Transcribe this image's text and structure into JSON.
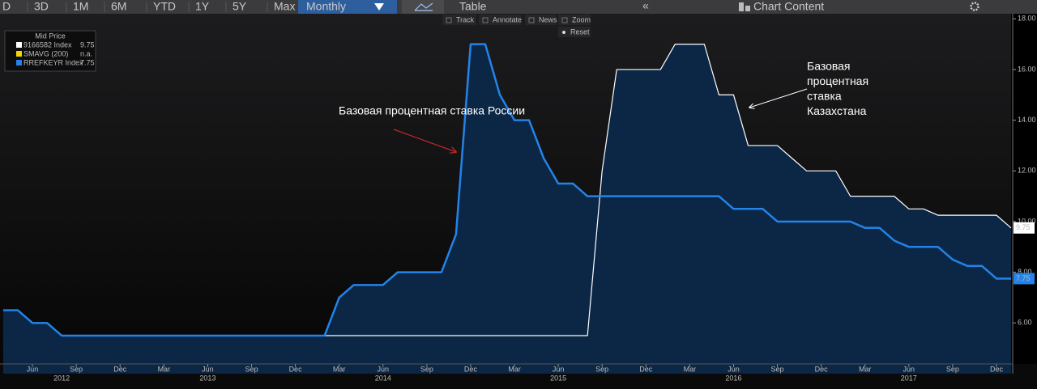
{
  "toolbar": {
    "ranges": [
      "D",
      "3D",
      "1M",
      "6M",
      "YTD",
      "1Y",
      "5Y",
      "Max"
    ],
    "period": "Monthly",
    "table": "Table",
    "panel": "Chart Content"
  },
  "chart_tools": [
    "Track",
    "Annotate",
    "News",
    "Zoom"
  ],
  "reset": "Reset",
  "chart_data": {
    "type": "line",
    "area": true,
    "area_color": "#0b2745",
    "legend_title": "Mid Price",
    "legend_extra": {
      "name": "SMAVG (200)",
      "color": "#f2d600",
      "value_label": "n.a."
    },
    "annotations": [
      {
        "text": "Базовая процентная ставка России",
        "color": "#c0262b"
      },
      {
        "lines": [
          "Базовая",
          "процентная",
          "ставка",
          "Казахстана"
        ],
        "color": "#ffffff"
      }
    ],
    "x": [
      "2012-04",
      "2012-05",
      "2012-06",
      "2012-07",
      "2012-08",
      "2012-09",
      "2012-10",
      "2012-11",
      "2012-12",
      "2013-01",
      "2013-02",
      "2013-03",
      "2013-04",
      "2013-05",
      "2013-06",
      "2013-07",
      "2013-08",
      "2013-09",
      "2013-10",
      "2013-11",
      "2013-12",
      "2014-01",
      "2014-02",
      "2014-03",
      "2014-04",
      "2014-05",
      "2014-06",
      "2014-07",
      "2014-08",
      "2014-09",
      "2014-10",
      "2014-11",
      "2014-12",
      "2015-01",
      "2015-02",
      "2015-03",
      "2015-04",
      "2015-05",
      "2015-06",
      "2015-07",
      "2015-08",
      "2015-09",
      "2015-10",
      "2015-11",
      "2015-12",
      "2016-01",
      "2016-02",
      "2016-03",
      "2016-04",
      "2016-05",
      "2016-06",
      "2016-07",
      "2016-08",
      "2016-09",
      "2016-10",
      "2016-11",
      "2016-12",
      "2017-01",
      "2017-02",
      "2017-03",
      "2017-04",
      "2017-05",
      "2017-06",
      "2017-07",
      "2017-08",
      "2017-09",
      "2017-10",
      "2017-11",
      "2017-12",
      "2018-01"
    ],
    "series": [
      {
        "name": "9166582 Index",
        "color": "#ffffff",
        "width": 1.2,
        "values": [
          null,
          null,
          null,
          null,
          null,
          null,
          null,
          null,
          null,
          null,
          null,
          null,
          null,
          null,
          null,
          null,
          null,
          5.5,
          5.5,
          5.5,
          5.5,
          5.5,
          5.5,
          5.5,
          5.5,
          5.5,
          5.5,
          5.5,
          5.5,
          5.5,
          5.5,
          5.5,
          5.5,
          5.5,
          5.5,
          5.5,
          5.5,
          5.5,
          5.5,
          5.5,
          5.5,
          12,
          16,
          16,
          16,
          16,
          17,
          17,
          17,
          15,
          15,
          13,
          13,
          13,
          12.5,
          12,
          12,
          12,
          11,
          11,
          11,
          11,
          10.5,
          10.5,
          10.25,
          10.25,
          10.25,
          10.25,
          10.25,
          9.75
        ]
      },
      {
        "name": "RREFKEYR Index",
        "color": "#2383e8",
        "width": 2.5,
        "values": [
          6.5,
          6.5,
          6,
          6,
          5.5,
          5.5,
          5.5,
          5.5,
          5.5,
          5.5,
          5.5,
          5.5,
          5.5,
          5.5,
          5.5,
          5.5,
          5.5,
          5.5,
          5.5,
          5.5,
          5.5,
          5.5,
          5.5,
          7,
          7.5,
          7.5,
          7.5,
          8,
          8,
          8,
          8,
          9.5,
          17,
          17,
          15,
          14,
          14,
          12.5,
          11.5,
          11.5,
          11,
          11,
          11,
          11,
          11,
          11,
          11,
          11,
          11,
          11,
          10.5,
          10.5,
          10.5,
          10,
          10,
          10,
          10,
          10,
          10,
          9.75,
          9.75,
          9.25,
          9,
          9,
          9,
          8.5,
          8.25,
          8.25,
          7.75,
          7.75
        ]
      }
    ],
    "xlim": [
      "2012-04",
      "2018-01"
    ],
    "xticks": [
      {
        "value": "2012-06",
        "label": "Jun"
      },
      {
        "value": "2012-09",
        "label": "Sep"
      },
      {
        "value": "2012-12",
        "label": "Dec"
      },
      {
        "value": "2013-03",
        "label": "Mar"
      },
      {
        "value": "2013-06",
        "label": "Jun"
      },
      {
        "value": "2013-09",
        "label": "Sep"
      },
      {
        "value": "2013-12",
        "label": "Dec"
      },
      {
        "value": "2014-03",
        "label": "Mar"
      },
      {
        "value": "2014-06",
        "label": "Jun"
      },
      {
        "value": "2014-09",
        "label": "Sep"
      },
      {
        "value": "2014-12",
        "label": "Dec"
      },
      {
        "value": "2015-03",
        "label": "Mar"
      },
      {
        "value": "2015-06",
        "label": "Jun"
      },
      {
        "value": "2015-09",
        "label": "Sep"
      },
      {
        "value": "2015-12",
        "label": "Dec"
      },
      {
        "value": "2016-03",
        "label": "Mar"
      },
      {
        "value": "2016-06",
        "label": "Jun"
      },
      {
        "value": "2016-09",
        "label": "Sep"
      },
      {
        "value": "2016-12",
        "label": "Dec"
      },
      {
        "value": "2017-03",
        "label": "Mar"
      },
      {
        "value": "2017-06",
        "label": "Jun"
      },
      {
        "value": "2017-09",
        "label": "Sep"
      },
      {
        "value": "2017-12",
        "label": "Dec"
      }
    ],
    "year_labels": [
      {
        "value": "2012-08",
        "label": "2012"
      },
      {
        "value": "2013-06",
        "label": "2013"
      },
      {
        "value": "2014-06",
        "label": "2014"
      },
      {
        "value": "2015-06",
        "label": "2015"
      },
      {
        "value": "2016-06",
        "label": "2016"
      },
      {
        "value": "2017-06",
        "label": "2017"
      }
    ],
    "ylim": [
      4,
      18.2
    ],
    "yticks": [
      {
        "value": 6,
        "label": "6.00"
      },
      {
        "value": 8,
        "label": "8.00"
      },
      {
        "value": 10,
        "label": "10.00"
      },
      {
        "value": 12,
        "label": "12.00"
      },
      {
        "value": 14,
        "label": "14.00"
      },
      {
        "value": 16,
        "label": "16.00"
      },
      {
        "value": 18,
        "label": "18.00"
      }
    ],
    "grid": false
  }
}
